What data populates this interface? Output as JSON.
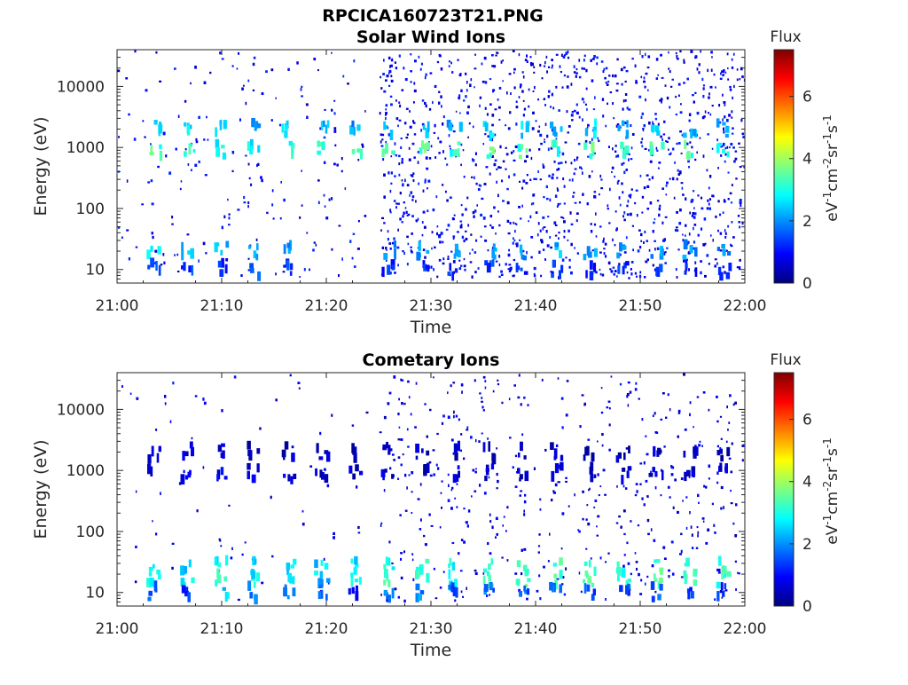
{
  "figure_title": "RPCICA160723T21.PNG",
  "colorbar": {
    "label": "Flux",
    "unit_main": "eV",
    "ticks": [
      0,
      2,
      4,
      6
    ],
    "tick_labels": [
      "0",
      "2",
      "4",
      "6"
    ],
    "range": [
      0,
      7.5
    ],
    "colormap": [
      "#00007f",
      "#0000ff",
      "#007fff",
      "#00ffff",
      "#7fff7f",
      "#ffff00",
      "#ff7f00",
      "#ff0000",
      "#7f0000"
    ]
  },
  "chart_data": [
    {
      "type": "heatmap",
      "title": "Solar Wind Ions",
      "xlabel": "Time",
      "ylabel": "Energy (eV)",
      "x_tick_labels": [
        "21:00",
        "21:10",
        "21:20",
        "21:30",
        "21:40",
        "21:50",
        "22:00"
      ],
      "xlim": [
        "21:00",
        "22:00"
      ],
      "y_tick_labels": [
        "10",
        "100",
        "1000",
        "10000"
      ],
      "y_scale": "log",
      "ylim": [
        6,
        40000
      ],
      "grid": false,
      "x_minutes": [
        3.6,
        6.8,
        10.0,
        13.1,
        16.4,
        19.6,
        22.8,
        26.0,
        29.2,
        32.3,
        35.6,
        38.8,
        42.0,
        45.2,
        48.4,
        51.6,
        54.8,
        58.0
      ],
      "bands": [
        {
          "energy": 2000,
          "flux": [
            2.4,
            2.5,
            2.2,
            2.1,
            2.3,
            2.2,
            2.0,
            2.3,
            2.4,
            2.2,
            2.5,
            2.3,
            2.2,
            2.4,
            2.2,
            2.5,
            2.3,
            2.2
          ]
        },
        {
          "energy": 900,
          "flux": [
            3.2,
            3.0,
            2.8,
            2.6,
            2.9,
            3.1,
            3.0,
            3.1,
            3.3,
            3.0,
            3.4,
            3.2,
            3.0,
            3.3,
            3.1,
            3.4,
            3.2,
            3.0
          ]
        },
        {
          "energy": 20,
          "flux": [
            2.6,
            2.4,
            2.2,
            2.0,
            2.1,
            0,
            0,
            1.8,
            2.0,
            1.9,
            2.1,
            2.0,
            2.2,
            1.9,
            2.0,
            2.1,
            1.9,
            2.0
          ]
        },
        {
          "energy": 10,
          "flux": [
            1.4,
            1.2,
            1.0,
            1.3,
            1.2,
            0,
            0,
            1.1,
            1.2,
            1.0,
            1.3,
            1.1,
            1.2,
            1.0,
            1.1,
            1.2,
            1.0,
            1.1
          ]
        }
      ],
      "background_flux": 0.4
    },
    {
      "type": "heatmap",
      "title": "Cometary Ions",
      "xlabel": "Time",
      "ylabel": "Energy (eV)",
      "x_tick_labels": [
        "21:00",
        "21:10",
        "21:20",
        "21:30",
        "21:40",
        "21:50",
        "22:00"
      ],
      "xlim": [
        "21:00",
        "22:00"
      ],
      "y_tick_labels": [
        "10",
        "100",
        "1000",
        "10000"
      ],
      "y_scale": "log",
      "ylim": [
        6,
        40000
      ],
      "grid": false,
      "x_minutes": [
        3.6,
        6.8,
        10.0,
        13.1,
        16.4,
        19.6,
        22.8,
        26.0,
        29.2,
        32.3,
        35.6,
        38.8,
        42.0,
        45.2,
        48.4,
        51.6,
        54.8,
        58.0
      ],
      "bands": [
        {
          "energy": 2000,
          "flux": [
            0.5,
            0.5,
            0.4,
            0.4,
            0.4,
            0.3,
            0.3,
            0.3,
            0.3,
            0.3,
            0.3,
            0.3,
            0.3,
            0.3,
            0.3,
            0.3,
            0.3,
            0.3
          ]
        },
        {
          "energy": 900,
          "flux": [
            0.6,
            0.7,
            0.6,
            0.5,
            0.6,
            0.4,
            0.4,
            0.4,
            0.4,
            0.4,
            0.4,
            0.4,
            0.4,
            0.4,
            0.4,
            0.4,
            0.4,
            0.4
          ]
        },
        {
          "energy": 26,
          "flux": [
            2.6,
            2.4,
            2.6,
            2.3,
            2.5,
            2.4,
            2.6,
            2.9,
            3.0,
            2.8,
            3.1,
            3.0,
            3.1,
            3.2,
            3.0,
            3.2,
            3.1,
            3.0
          ]
        },
        {
          "energy": 16,
          "flux": [
            2.9,
            2.7,
            3.0,
            2.6,
            2.8,
            2.2,
            2.6,
            3.2,
            3.3,
            2.9,
            3.4,
            3.2,
            3.3,
            3.4,
            3.2,
            3.4,
            3.3,
            3.1
          ]
        },
        {
          "energy": 10,
          "flux": [
            1.6,
            1.2,
            2.4,
            1.8,
            2.0,
            1.4,
            0.8,
            1.6,
            1.8,
            1.4,
            1.6,
            1.4,
            1.6,
            1.4,
            1.2,
            1.4,
            1.3,
            1.2
          ]
        }
      ],
      "background_flux": 0.4
    }
  ]
}
